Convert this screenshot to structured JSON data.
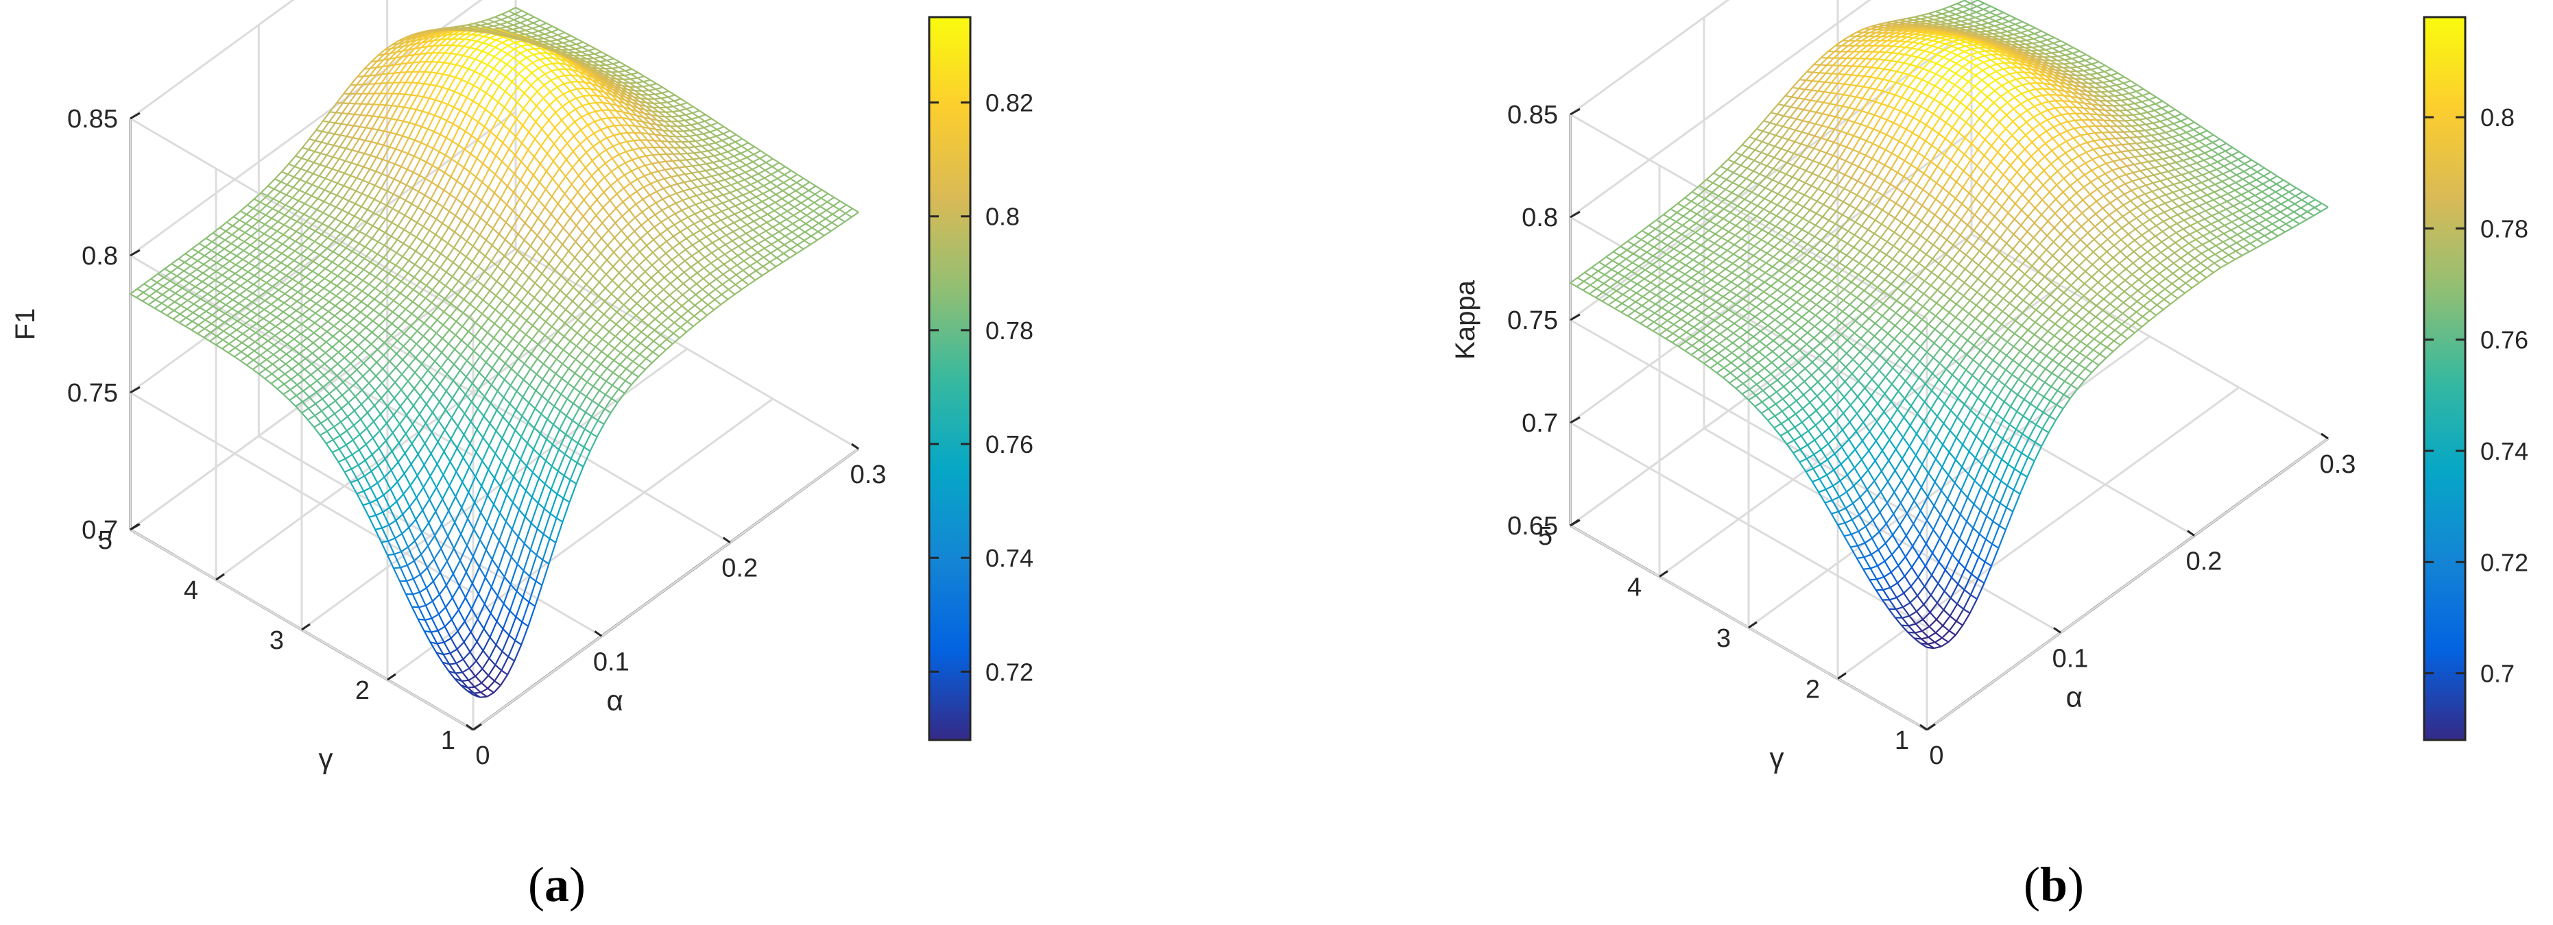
{
  "chart_data": [
    {
      "type": "surface",
      "panel_label": "a",
      "xlabel": "α",
      "ylabel": "γ",
      "zlabel": "F1",
      "x_ticks": [
        "0",
        "0.1",
        "0.2",
        "0.3"
      ],
      "y_ticks": [
        "1",
        "2",
        "3",
        "4",
        "5"
      ],
      "z_ticks": [
        "0.7",
        "0.75",
        "0.8",
        "0.85"
      ],
      "xlim": [
        0,
        0.3
      ],
      "ylim": [
        1,
        5
      ],
      "zlim": [
        0.7,
        0.85
      ],
      "grid": true,
      "colormap": "parula",
      "surface_model": {
        "low_alpha_plateau": 0.786,
        "peak_value": 0.832,
        "peak_alpha": 0.2,
        "peak_gamma": 3.6,
        "min_value": 0.708,
        "min_alpha": 0.015,
        "min_gamma": 1.0,
        "value_at_alpha_max": 0.786
      },
      "colorbar": {
        "ticks": [
          "0.72",
          "0.74",
          "0.76",
          "0.78",
          "0.8",
          "0.82"
        ],
        "range": [
          0.708,
          0.835
        ]
      }
    },
    {
      "type": "surface",
      "panel_label": "b",
      "xlabel": "α",
      "ylabel": "γ",
      "zlabel": "Kappa",
      "x_ticks": [
        "0",
        "0.1",
        "0.2",
        "0.3"
      ],
      "y_ticks": [
        "1",
        "2",
        "3",
        "4",
        "5"
      ],
      "z_ticks": [
        "0.65",
        "0.7",
        "0.75",
        "0.8",
        "0.85"
      ],
      "xlim": [
        0,
        0.3
      ],
      "ylim": [
        1,
        5
      ],
      "zlim": [
        0.65,
        0.85
      ],
      "grid": true,
      "colormap": "parula",
      "surface_model": {
        "low_alpha_plateau": 0.768,
        "peak_value": 0.815,
        "peak_alpha": 0.2,
        "peak_gamma": 3.6,
        "min_value": 0.685,
        "min_alpha": 0.015,
        "min_gamma": 1.0,
        "value_at_alpha_max": 0.762
      },
      "colorbar": {
        "ticks": [
          "0.7",
          "0.72",
          "0.74",
          "0.76",
          "0.78",
          "0.8"
        ],
        "range": [
          0.688,
          0.818
        ]
      }
    }
  ],
  "colors": {
    "parula_stops": [
      "#352a87",
      "#0363e1",
      "#1485d4",
      "#06a7c6",
      "#38b99e",
      "#92bf73",
      "#d9ba56",
      "#fcce2e",
      "#f9fb0e"
    ],
    "axis": "#262626",
    "grid": "#dcdcdc"
  }
}
